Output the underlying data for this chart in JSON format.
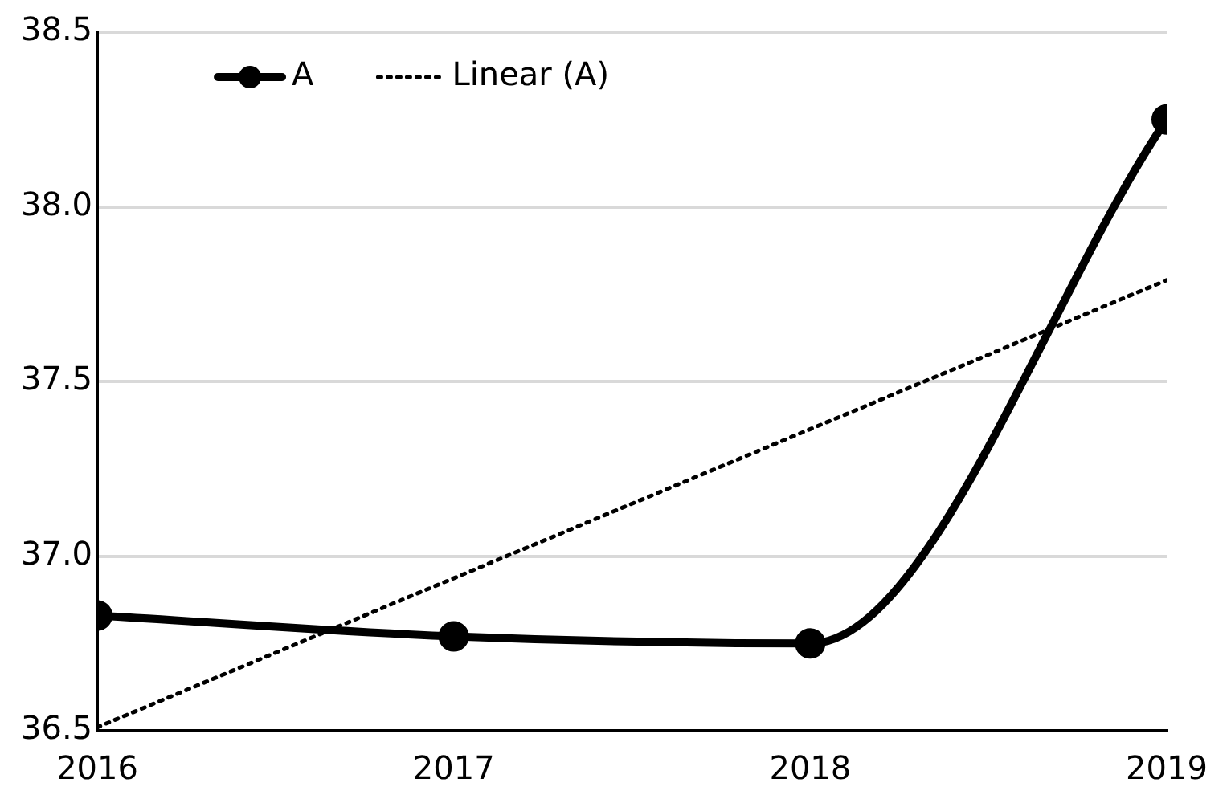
{
  "chart_data": {
    "type": "line",
    "x": [
      2016,
      2017,
      2018,
      2019
    ],
    "xlim": [
      2016,
      2019
    ],
    "xticks": [
      2016,
      2017,
      2018,
      2019
    ],
    "ylim": [
      36.5,
      38.5
    ],
    "yticks": [
      {
        "value": 36.5,
        "label": "36.5"
      },
      {
        "value": 37,
        "label": "37.0"
      },
      {
        "value": 37.5,
        "label": "37.5"
      },
      {
        "value": 38,
        "label": "38.0"
      },
      {
        "value": 38.5,
        "label": "38.5"
      }
    ],
    "grid": "y",
    "legend": "top left",
    "series": [
      {
        "name": "A",
        "color": "#000000",
        "values": [
          36.83,
          36.77,
          36.75,
          38.25
        ],
        "marker": "circle",
        "line_style": "solid"
      },
      {
        "name": "Linear (A)",
        "type": "line",
        "color": "#000000",
        "x": [
          2016,
          2019
        ],
        "values": [
          36.51,
          37.79
        ],
        "marker": "none",
        "line_style": "dotted"
      }
    ]
  }
}
